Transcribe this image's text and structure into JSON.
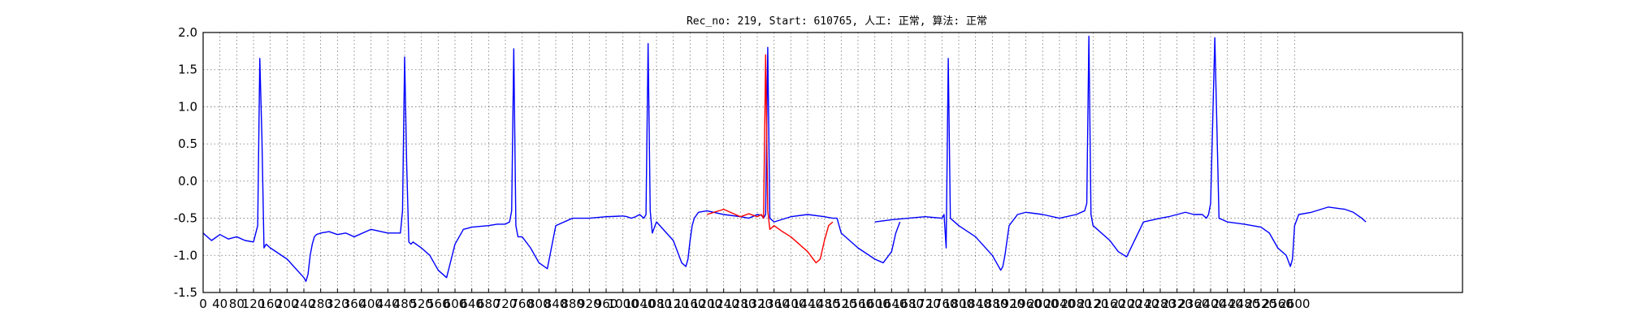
{
  "chart_data": {
    "type": "line",
    "title": "Rec_no: 219, Start: 610765, 人工: 正常, 算法: 正常",
    "xlabel": "",
    "ylabel": "",
    "xlim": [
      0,
      3000
    ],
    "ylim": [
      -1.5,
      2.0
    ],
    "grid": true,
    "y_ticks": [
      "2.0",
      "1.5",
      "1.0",
      "0.5",
      "0.0",
      "-0.5",
      "-1.0",
      "-1.5"
    ],
    "x_ticks": [
      "0",
      "40",
      "80",
      "120",
      "160",
      "200",
      "240",
      "280",
      "320",
      "360",
      "400",
      "440",
      "480",
      "520",
      "560",
      "600",
      "640",
      "680",
      "720",
      "760",
      "800",
      "840",
      "880",
      "920",
      "960",
      "1000",
      "1040",
      "1080",
      "1120",
      "1160",
      "1200",
      "1240",
      "1280",
      "1320",
      "1360",
      "1400",
      "1440",
      "1480",
      "1520",
      "1560",
      "1600",
      "1640",
      "1680",
      "1720",
      "1760",
      "1800",
      "1840",
      "1880",
      "1920",
      "1960",
      "2000",
      "2040",
      "2080",
      "2120",
      "2160",
      "2200",
      "2240",
      "2280",
      "2320",
      "2360",
      "2400",
      "2440",
      "2480",
      "2520",
      "2560",
      "2600"
    ],
    "series": [
      {
        "color": "#0000ff",
        "x": [
          0,
          20,
          40,
          60,
          80,
          100,
          120,
          130,
          135,
          140,
          145,
          150,
          160,
          200,
          240,
          245,
          250,
          255,
          260,
          265,
          270,
          280,
          300,
          320,
          340,
          360,
          400,
          440,
          470,
          475,
          480,
          485,
          490,
          495,
          500,
          520,
          540,
          560,
          580,
          600,
          620,
          640,
          680,
          700,
          720,
          730,
          735,
          740,
          745,
          750,
          760,
          780,
          800,
          820,
          840,
          880,
          920,
          960,
          1000,
          1010,
          1020,
          1030,
          1040,
          1050,
          1055,
          1060,
          1065,
          1070,
          1080,
          1120,
          1140,
          1150,
          1155,
          1160,
          1165,
          1170,
          1180,
          1200,
          1240,
          1280,
          1300,
          1320,
          1330,
          1335,
          1340,
          1345,
          1350,
          1360,
          1400,
          1440,
          1480,
          1500,
          1510,
          1520,
          1560,
          1600,
          1620,
          1640,
          1650,
          1660
        ],
        "y": [
          -0.7,
          -0.8,
          -0.72,
          -0.78,
          -0.75,
          -0.8,
          -0.82,
          -0.6,
          1.65,
          0.6,
          -0.9,
          -0.85,
          -0.9,
          -1.05,
          -1.3,
          -1.35,
          -1.25,
          -1.0,
          -0.85,
          -0.75,
          -0.72,
          -0.7,
          -0.68,
          -0.72,
          -0.7,
          -0.75,
          -0.65,
          -0.7,
          -0.7,
          -0.4,
          1.67,
          0.2,
          -0.82,
          -0.85,
          -0.82,
          -0.9,
          -1.0,
          -1.2,
          -1.3,
          -0.85,
          -0.65,
          -0.62,
          -0.6,
          -0.58,
          -0.58,
          -0.55,
          -0.4,
          1.78,
          -0.6,
          -0.75,
          -0.75,
          -0.9,
          -1.1,
          -1.18,
          -0.6,
          -0.5,
          -0.5,
          -0.48,
          -0.47,
          -0.48,
          -0.5,
          -0.48,
          -0.45,
          -0.5,
          -0.45,
          1.85,
          -0.4,
          -0.7,
          -0.55,
          -0.8,
          -1.1,
          -1.15,
          -1.05,
          -0.8,
          -0.6,
          -0.5,
          -0.42,
          -0.4,
          -0.45,
          -0.48,
          -0.5,
          -0.45,
          -0.46,
          -0.5,
          -0.45,
          1.8,
          -0.5,
          -0.55,
          -0.48,
          -0.45,
          -0.48,
          -0.5,
          -0.5,
          -0.7,
          -0.9,
          -1.05,
          -1.1,
          -0.95,
          -0.7,
          -0.55
        ]
      },
      {
        "color": "#0000ff",
        "x": [
          1600,
          1640,
          1680,
          1720,
          1760,
          1765,
          1770,
          1775,
          1780,
          1800,
          1840,
          1880,
          1900,
          1905,
          1910,
          1920,
          1940,
          1960,
          2000,
          2040,
          2080,
          2100,
          2105,
          2110,
          2115,
          2120,
          2160,
          2180,
          2200,
          2240,
          2280,
          2300,
          2320,
          2340,
          2360,
          2380,
          2390,
          2395,
          2400,
          2410,
          2420,
          2440,
          2480,
          2520,
          2540,
          2560,
          2580,
          2590,
          2595,
          2600,
          2610,
          2640,
          2680,
          2720,
          2740,
          2760,
          2770
        ],
        "y": [
          -0.55,
          -0.52,
          -0.5,
          -0.48,
          -0.5,
          -0.45,
          -0.9,
          1.65,
          -0.5,
          -0.6,
          -0.75,
          -1.0,
          -1.2,
          -1.15,
          -1.0,
          -0.6,
          -0.45,
          -0.42,
          -0.45,
          -0.5,
          -0.45,
          -0.4,
          -0.3,
          1.95,
          -0.45,
          -0.6,
          -0.8,
          -0.95,
          -1.02,
          -0.55,
          -0.5,
          -0.48,
          -0.45,
          -0.42,
          -0.45,
          -0.45,
          -0.5,
          -0.45,
          -0.3,
          1.93,
          -0.5,
          -0.55,
          -0.58,
          -0.62,
          -0.7,
          -0.9,
          -1.0,
          -1.15,
          -1.05,
          -0.6,
          -0.45,
          -0.42,
          -0.35,
          -0.38,
          -0.42,
          -0.5,
          -0.55
        ]
      },
      {
        "color": "#ff0000",
        "x": [
          1200,
          1240,
          1280,
          1300,
          1320,
          1330,
          1335,
          1340,
          1345,
          1350,
          1360,
          1380,
          1400,
          1420,
          1440,
          1460,
          1470,
          1480,
          1490,
          1500
        ],
        "y": [
          -0.45,
          -0.38,
          -0.48,
          -0.44,
          -0.48,
          -0.45,
          -0.5,
          1.7,
          -0.4,
          -0.65,
          -0.6,
          -0.68,
          -0.75,
          -0.85,
          -0.95,
          -1.1,
          -1.05,
          -0.8,
          -0.6,
          -0.55
        ]
      }
    ]
  }
}
